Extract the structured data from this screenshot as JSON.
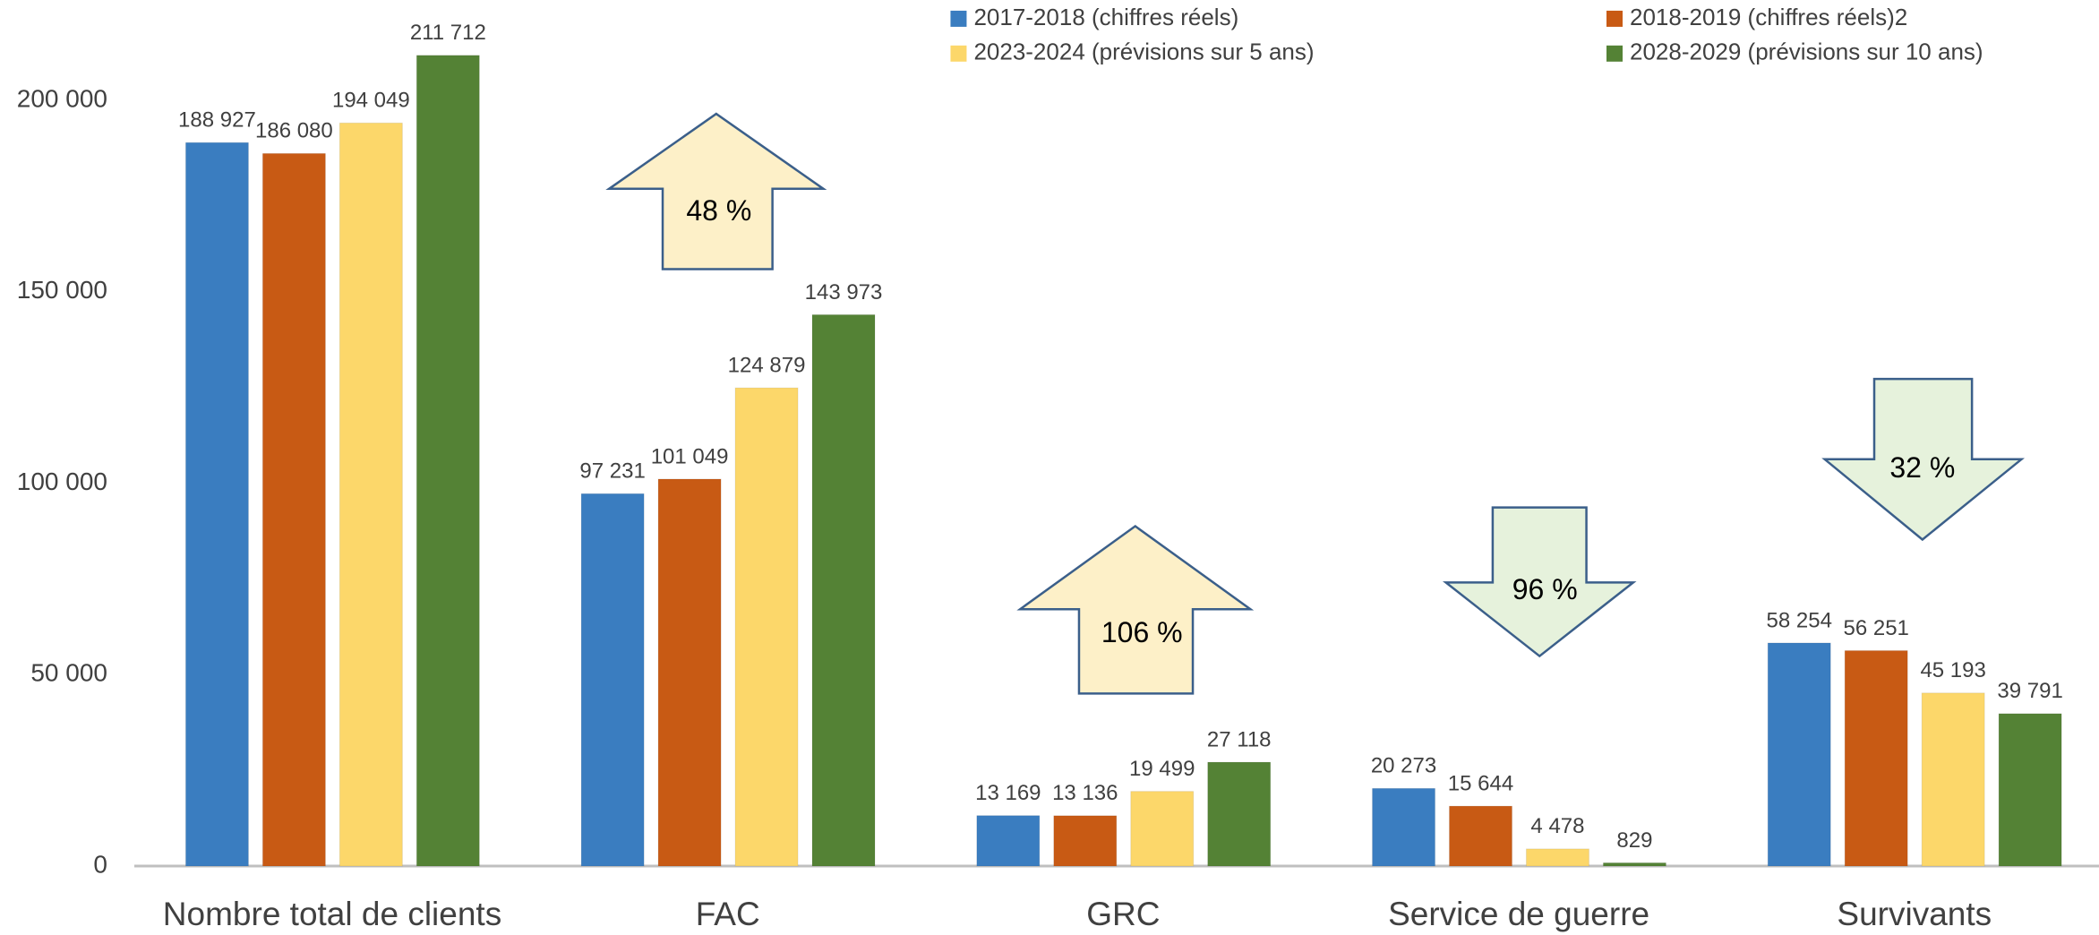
{
  "chart_data": {
    "type": "bar",
    "categories": [
      "Nombre total de clients",
      "FAC",
      "GRC",
      "Service de guerre",
      "Survivants"
    ],
    "series": [
      {
        "name": "2017-2018 (chiffres réels)",
        "color": "#3a7dc0",
        "values": [
          188927,
          97231,
          13169,
          20273,
          58254
        ],
        "value_labels": [
          "188 927",
          "97 231",
          "13 169",
          "20 273",
          "58 254"
        ]
      },
      {
        "name": "2018-2019 (chiffres réels)2",
        "color": "#c85a14",
        "values": [
          186080,
          101049,
          13136,
          15644,
          56251
        ],
        "value_labels": [
          "186 080",
          "101 049",
          "13 136",
          "15 644",
          "56 251"
        ]
      },
      {
        "name": "2023-2024 (prévisions sur 5 ans)",
        "color": "#fcd76a",
        "values": [
          194049,
          124879,
          19499,
          4478,
          45193
        ],
        "value_labels": [
          "194 049",
          "124 879",
          "19 499",
          "4 478",
          "45 193"
        ]
      },
      {
        "name": "2028-2029 (prévisions sur 10 ans)",
        "color": "#548235",
        "values": [
          211712,
          143973,
          27118,
          829,
          39791
        ],
        "value_labels": [
          "211 712",
          "143 973",
          "27 118",
          "829",
          "39 791"
        ]
      }
    ],
    "ylim": [
      0,
      225000
    ],
    "yticks": [
      0,
      {
        "value": 50000,
        "label": "50 000"
      },
      {
        "value": 100000,
        "label": "100 000"
      },
      {
        "value": 150000,
        "label": "150 000"
      },
      {
        "value": 200000,
        "label": "200 000"
      }
    ],
    "annotations": [
      "48 %",
      "106 %",
      "96 %",
      "32 %"
    ]
  }
}
